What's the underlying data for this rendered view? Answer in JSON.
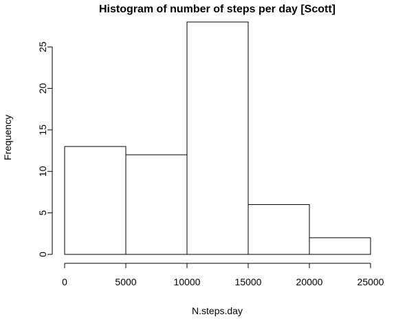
{
  "chart_data": {
    "type": "bar",
    "subtype": "histogram",
    "title": "Histogram of number of steps per day [Scott]",
    "xlabel": "N.steps.day",
    "ylabel": "Frequency",
    "bins": [
      {
        "from": 0,
        "to": 5000,
        "count": 13
      },
      {
        "from": 5000,
        "to": 10000,
        "count": 12
      },
      {
        "from": 10000,
        "to": 15000,
        "count": 28
      },
      {
        "from": 15000,
        "to": 20000,
        "count": 6
      },
      {
        "from": 20000,
        "to": 25000,
        "count": 2
      }
    ],
    "xlim": [
      0,
      25000
    ],
    "ylim": [
      0,
      28
    ],
    "x_ticks": [
      0,
      5000,
      10000,
      15000,
      20000,
      25000
    ],
    "y_ticks": [
      0,
      5,
      10,
      15,
      20,
      25
    ],
    "grid": false,
    "bar_color": "#ffffff",
    "border_color": "#000000"
  }
}
